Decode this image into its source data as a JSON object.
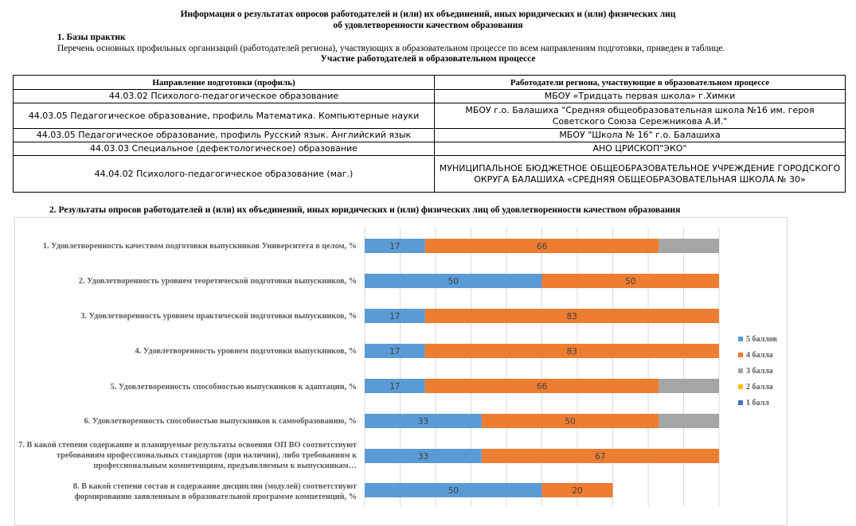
{
  "header": {
    "title_line1": "Информация о результатах опросов работодателей и (или) их объединений, иных юридических и (или) физических лиц",
    "title_line2": "об удовлетворенности качеством образования"
  },
  "section1": {
    "heading": "1. Базы практик",
    "intro": "Перечень основных профильных организаций (работодателей региона), участвующих в образовательном процессе по всем направлениям подготовки, приведен в таблице.",
    "table_title": "Участие работодателей в образовательном процессе",
    "columns": [
      "Направление подготовки (профиль)",
      "Работодатели региона, участвующие в образовательном процессе"
    ],
    "rows": [
      [
        "44.03.02 Психолого-педагогическое образование",
        "МБОУ «Тридцать первая школа» г.Химки"
      ],
      [
        "44.03.05 Педагогическое образование, профиль Математика. Компьютерные науки",
        "МБОУ г.о. Балашиха \"Средняя общеобразовательная школа №16 им. героя Советского Союза Сережникова А.И.\""
      ],
      [
        "44.03.05 Педагогическое образование, профиль Русский язык. Английский язык",
        "МБОУ \"Школа № 16\" г.о. Балашиха"
      ],
      [
        "44.03.03 Специальное (дефектологическое) образование",
        "АНО ЦРИСКОП\"ЭКО\""
      ],
      [
        "44.04.02 Психолого-педагогическое образование (маг.)",
        "МУНИЦИПАЛЬНОЕ БЮДЖЕТНОЕ ОБЩЕОБРАЗОВАТЕЛЬНОЕ УЧРЕЖДЕНИЕ ГОРОДСКОГО ОКРУГА БАЛАШИХА «СРЕДНЯЯ ОБЩЕОБРАЗОВАТЕЛЬНАЯ ШКОЛА № 30»"
      ]
    ]
  },
  "section2": {
    "heading": "2. Результаты опросов работодателей и (или) их объединений, иных юридических и (или) физических лиц об удовлетворенности качеством образования"
  },
  "chart_data": {
    "type": "bar",
    "orientation": "horizontal",
    "stacked": true,
    "xlim": [
      0,
      100
    ],
    "grid": true,
    "legend_position": "right",
    "categories": [
      "1. Удовлетворенность качеством подготовки выпускников Университета в целом, %",
      "2. Удовлетворенность уровнем теоретической подготовки выпускников, %",
      "3. Удовлетворенность уровнем практической подготовки выпускников, %",
      "4. Удовлетворенность уровнем подготовки выпускников, %",
      "5. Удовлетворенность способностью выпускников к адаптации, %",
      "6. Удовлетворенность способностью выпускников к самообразованию, %",
      "7. В какой степени содержание и планируемые результаты освоения ОП ВО соответствуют требованиям профессиональных стандартов (при наличии), либо требованиям к профессиональным компетенциям, предъявляемым к выпускникам…",
      "8. В какой степени состав и содержание дисциплин (модулей) соответствуют формированию заявленным в образовательной программе компетенций, %"
    ],
    "series": [
      {
        "name": "5 баллов",
        "color": "#5b9bd5",
        "values": [
          17,
          50,
          17,
          17,
          17,
          33,
          33,
          50
        ]
      },
      {
        "name": "4 балла",
        "color": "#ed7d31",
        "values": [
          66,
          50,
          83,
          83,
          66,
          50,
          67,
          20
        ]
      },
      {
        "name": "3 балла",
        "color": "#a5a5a5",
        "values": [
          17,
          0,
          0,
          0,
          17,
          17,
          0,
          0
        ]
      },
      {
        "name": "2 балла",
        "color": "#ffc000",
        "values": [
          0,
          0,
          0,
          0,
          0,
          0,
          0,
          0
        ]
      },
      {
        "name": "1 балл",
        "color": "#4472c4",
        "values": [
          0,
          0,
          0,
          0,
          0,
          0,
          0,
          0
        ]
      }
    ]
  }
}
